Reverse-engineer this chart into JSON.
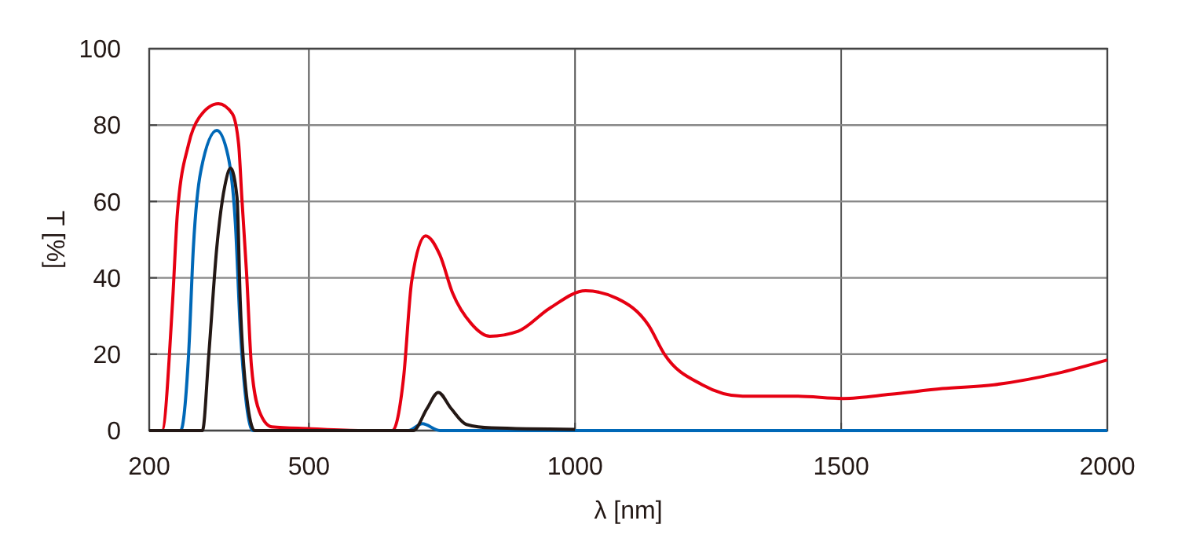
{
  "chart_data": {
    "type": "line",
    "xlabel": "λ [nm]",
    "ylabel": "T [%]",
    "xlim": [
      200,
      2000
    ],
    "ylim": [
      0,
      100
    ],
    "xticks": [
      200,
      500,
      1000,
      1500,
      2000
    ],
    "yticks": [
      0,
      20,
      40,
      60,
      80,
      100
    ],
    "grid": true,
    "marker": "none",
    "line_style": "solid",
    "series": [
      {
        "color": "#e60012",
        "x": [
          200,
          224,
          244,
          253,
          274,
          294,
          330,
          356,
          368,
          374,
          383,
          392,
          407,
          430,
          500,
          600,
          657,
          678,
          693,
          719,
          746,
          770,
          805,
          840,
          893,
          952,
          1020,
          1079,
          1138,
          1168,
          1239,
          1315,
          1416,
          1504,
          1593,
          1690,
          1787,
          1906,
          2000
        ],
        "values": [
          0,
          0,
          34,
          57,
          75,
          82,
          85.6,
          83,
          75,
          61,
          41,
          17,
          5,
          1,
          0.5,
          0,
          0,
          14,
          39,
          51,
          46,
          36,
          28,
          24.7,
          26,
          32,
          36.6,
          34.6,
          27.6,
          20,
          12,
          9,
          9,
          8.4,
          9.5,
          11,
          12,
          15,
          18.5
        ]
      },
      {
        "color": "#0068b7",
        "x": [
          200,
          259,
          274,
          283,
          297,
          327,
          348,
          362,
          371,
          383,
          395,
          687,
          713,
          746,
          2000
        ],
        "values": [
          0,
          0,
          20,
          48,
          68,
          78.6,
          72,
          54,
          27,
          6.6,
          0,
          0,
          1.8,
          0,
          0
        ]
      },
      {
        "color": "#231815",
        "x": [
          200,
          300,
          312,
          327,
          342,
          353,
          365,
          371,
          383,
          398,
          696,
          722,
          743,
          767,
          796,
          843,
          1000
        ],
        "values": [
          0,
          0,
          20,
          48,
          64,
          68.7,
          61,
          34,
          9,
          0,
          0,
          5.8,
          10,
          5.8,
          1.6,
          0.7,
          0.3
        ]
      }
    ]
  }
}
